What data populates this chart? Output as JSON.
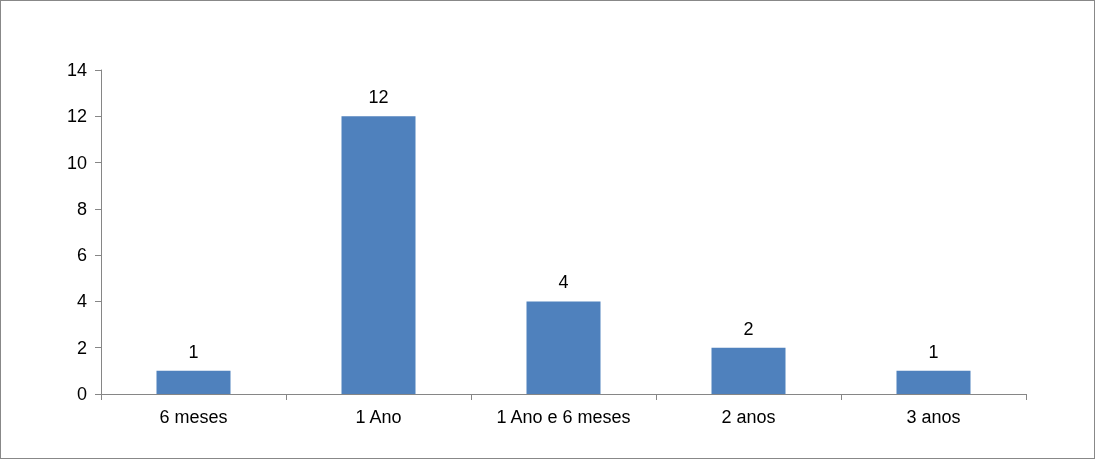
{
  "chart_data": {
    "type": "bar",
    "categories": [
      "6 meses",
      "1 Ano",
      "1 Ano e 6 meses",
      "2 anos",
      "3 anos"
    ],
    "values": [
      1,
      12,
      4,
      2,
      1
    ],
    "color": "#4f81bd",
    "ylim": [
      0,
      14
    ],
    "yticks": [
      0,
      2,
      4,
      6,
      8,
      10,
      12,
      14
    ],
    "grid": false,
    "data_labels": true
  }
}
